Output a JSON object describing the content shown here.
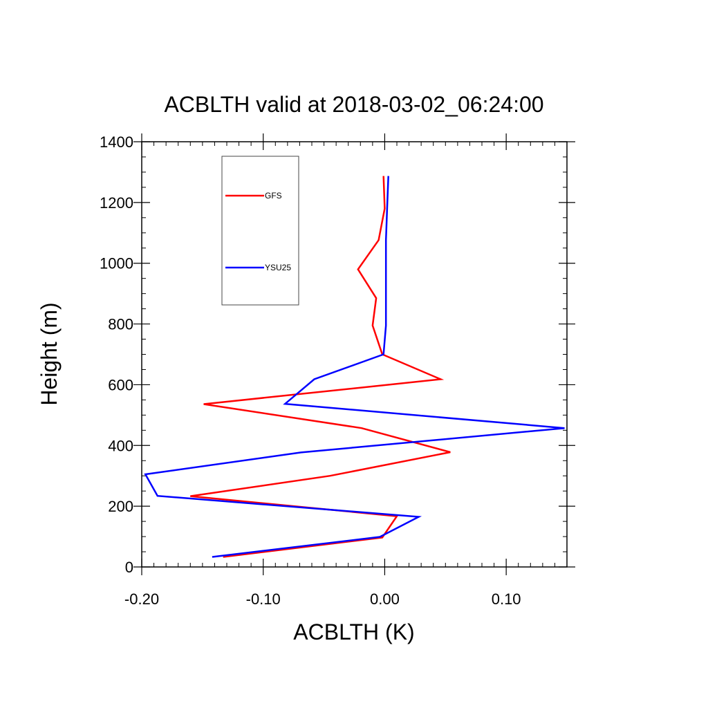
{
  "chart_data": {
    "type": "line",
    "title": "ACBLTH valid at 2018-03-02_06:24:00",
    "xlabel": "ACBLTH (K)",
    "ylabel": "Height (m)",
    "xlim": [
      -0.2,
      0.15
    ],
    "ylim": [
      0,
      1400
    ],
    "x_ticks": [
      -0.2,
      -0.1,
      0.0,
      0.1
    ],
    "x_tick_labels": [
      "-0.20",
      "-0.10",
      "0.00",
      "0.10"
    ],
    "y_ticks": [
      0,
      200,
      400,
      600,
      800,
      1000,
      1200,
      1400
    ],
    "y_tick_labels": [
      "0",
      "200",
      "400",
      "600",
      "800",
      "1000",
      "1200",
      "1400"
    ],
    "grid": false,
    "legend_position": "top-left",
    "series": [
      {
        "name": "GFS",
        "color": "#ff0000",
        "points": [
          {
            "x": -0.133,
            "y": 33
          },
          {
            "x": -0.002,
            "y": 97
          },
          {
            "x": 0.01,
            "y": 167
          },
          {
            "x": -0.16,
            "y": 233
          },
          {
            "x": -0.045,
            "y": 300
          },
          {
            "x": 0.054,
            "y": 378
          },
          {
            "x": -0.019,
            "y": 457
          },
          {
            "x": -0.149,
            "y": 536
          },
          {
            "x": 0.046,
            "y": 618
          },
          {
            "x": -0.002,
            "y": 700
          },
          {
            "x": -0.01,
            "y": 795
          },
          {
            "x": -0.007,
            "y": 885
          },
          {
            "x": -0.022,
            "y": 980
          },
          {
            "x": -0.005,
            "y": 1076
          },
          {
            "x": 0.0,
            "y": 1180
          },
          {
            "x": -0.001,
            "y": 1287
          }
        ]
      },
      {
        "name": "YSU25",
        "color": "#0000ff",
        "points": [
          {
            "x": -0.142,
            "y": 33
          },
          {
            "x": -0.004,
            "y": 99
          },
          {
            "x": 0.028,
            "y": 165
          },
          {
            "x": -0.187,
            "y": 234
          },
          {
            "x": -0.197,
            "y": 305
          },
          {
            "x": -0.069,
            "y": 377
          },
          {
            "x": 0.148,
            "y": 457
          },
          {
            "x": -0.082,
            "y": 537
          },
          {
            "x": -0.058,
            "y": 618
          },
          {
            "x": -0.001,
            "y": 700
          },
          {
            "x": 0.001,
            "y": 795
          },
          {
            "x": 0.001,
            "y": 885
          },
          {
            "x": 0.001,
            "y": 980
          },
          {
            "x": 0.001,
            "y": 1076
          },
          {
            "x": 0.002,
            "y": 1180
          },
          {
            "x": 0.003,
            "y": 1287
          }
        ]
      }
    ]
  }
}
